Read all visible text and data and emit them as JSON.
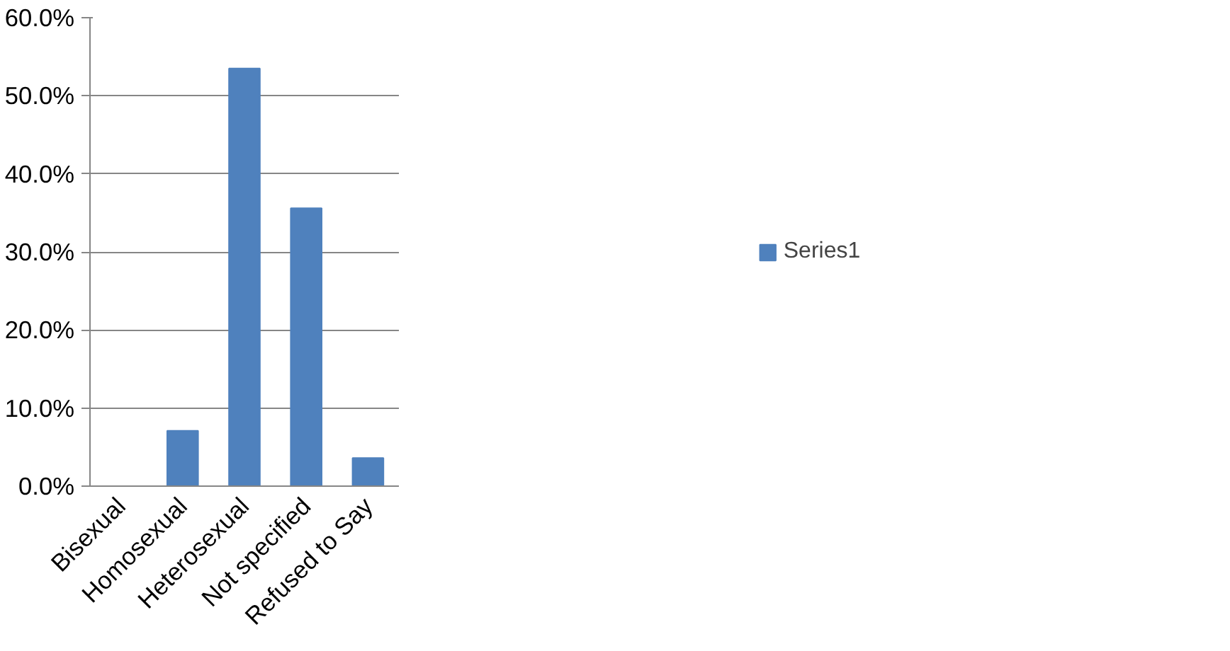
{
  "chart_data": {
    "type": "bar",
    "categories": [
      "Bisexual",
      "Homosexual",
      "Heterosexual",
      "Not specified",
      "Refused to Say"
    ],
    "series": [
      {
        "name": "Series1",
        "color": "#4f81bd",
        "values": [
          0,
          7.1,
          53.5,
          35.6,
          3.6
        ]
      }
    ],
    "ylim": [
      0,
      60
    ],
    "yticks": [
      {
        "value": 0,
        "label": "0.0%"
      },
      {
        "value": 10,
        "label": "10.0%"
      },
      {
        "value": 20,
        "label": "20.0%"
      },
      {
        "value": 30,
        "label": "30.0%"
      },
      {
        "value": 40,
        "label": "40.0%"
      },
      {
        "value": 50,
        "label": "50.0%"
      },
      {
        "value": 60,
        "label": "60.0%"
      }
    ],
    "grid": "y",
    "legend": "right"
  }
}
